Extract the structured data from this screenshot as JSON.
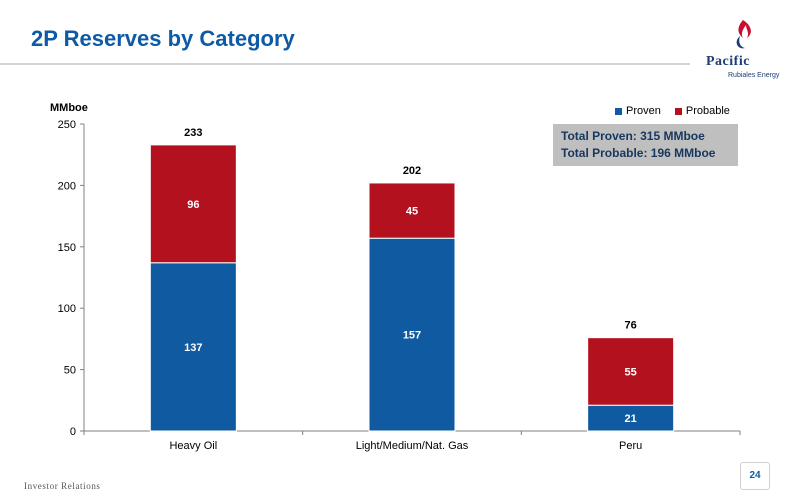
{
  "slide": {
    "title": "2P Reserves by Category",
    "footer": "Investor Relations",
    "page_number": "24"
  },
  "logo": {
    "name": "Pacific",
    "subtitle": "Rubiales Energy"
  },
  "chart_data": {
    "type": "bar",
    "stacked": true,
    "categories": [
      "Heavy Oil",
      "Light/Medium/Nat. Gas",
      "Peru"
    ],
    "series": [
      {
        "name": "Proven",
        "values": [
          137,
          157,
          21
        ],
        "color": "#0f5aa0"
      },
      {
        "name": "Probable",
        "values": [
          96,
          45,
          55
        ],
        "color": "#b3111e"
      }
    ],
    "totals": [
      233,
      202,
      76
    ],
    "ylabel": "MMboe",
    "ylim": [
      0,
      250
    ],
    "yticks": [
      0,
      50,
      100,
      150,
      200,
      250
    ],
    "legend_position": "top-right",
    "grid": false,
    "annotation": [
      "Total Proven: 315 MMboe",
      "Total Probable: 196 MMboe"
    ]
  }
}
